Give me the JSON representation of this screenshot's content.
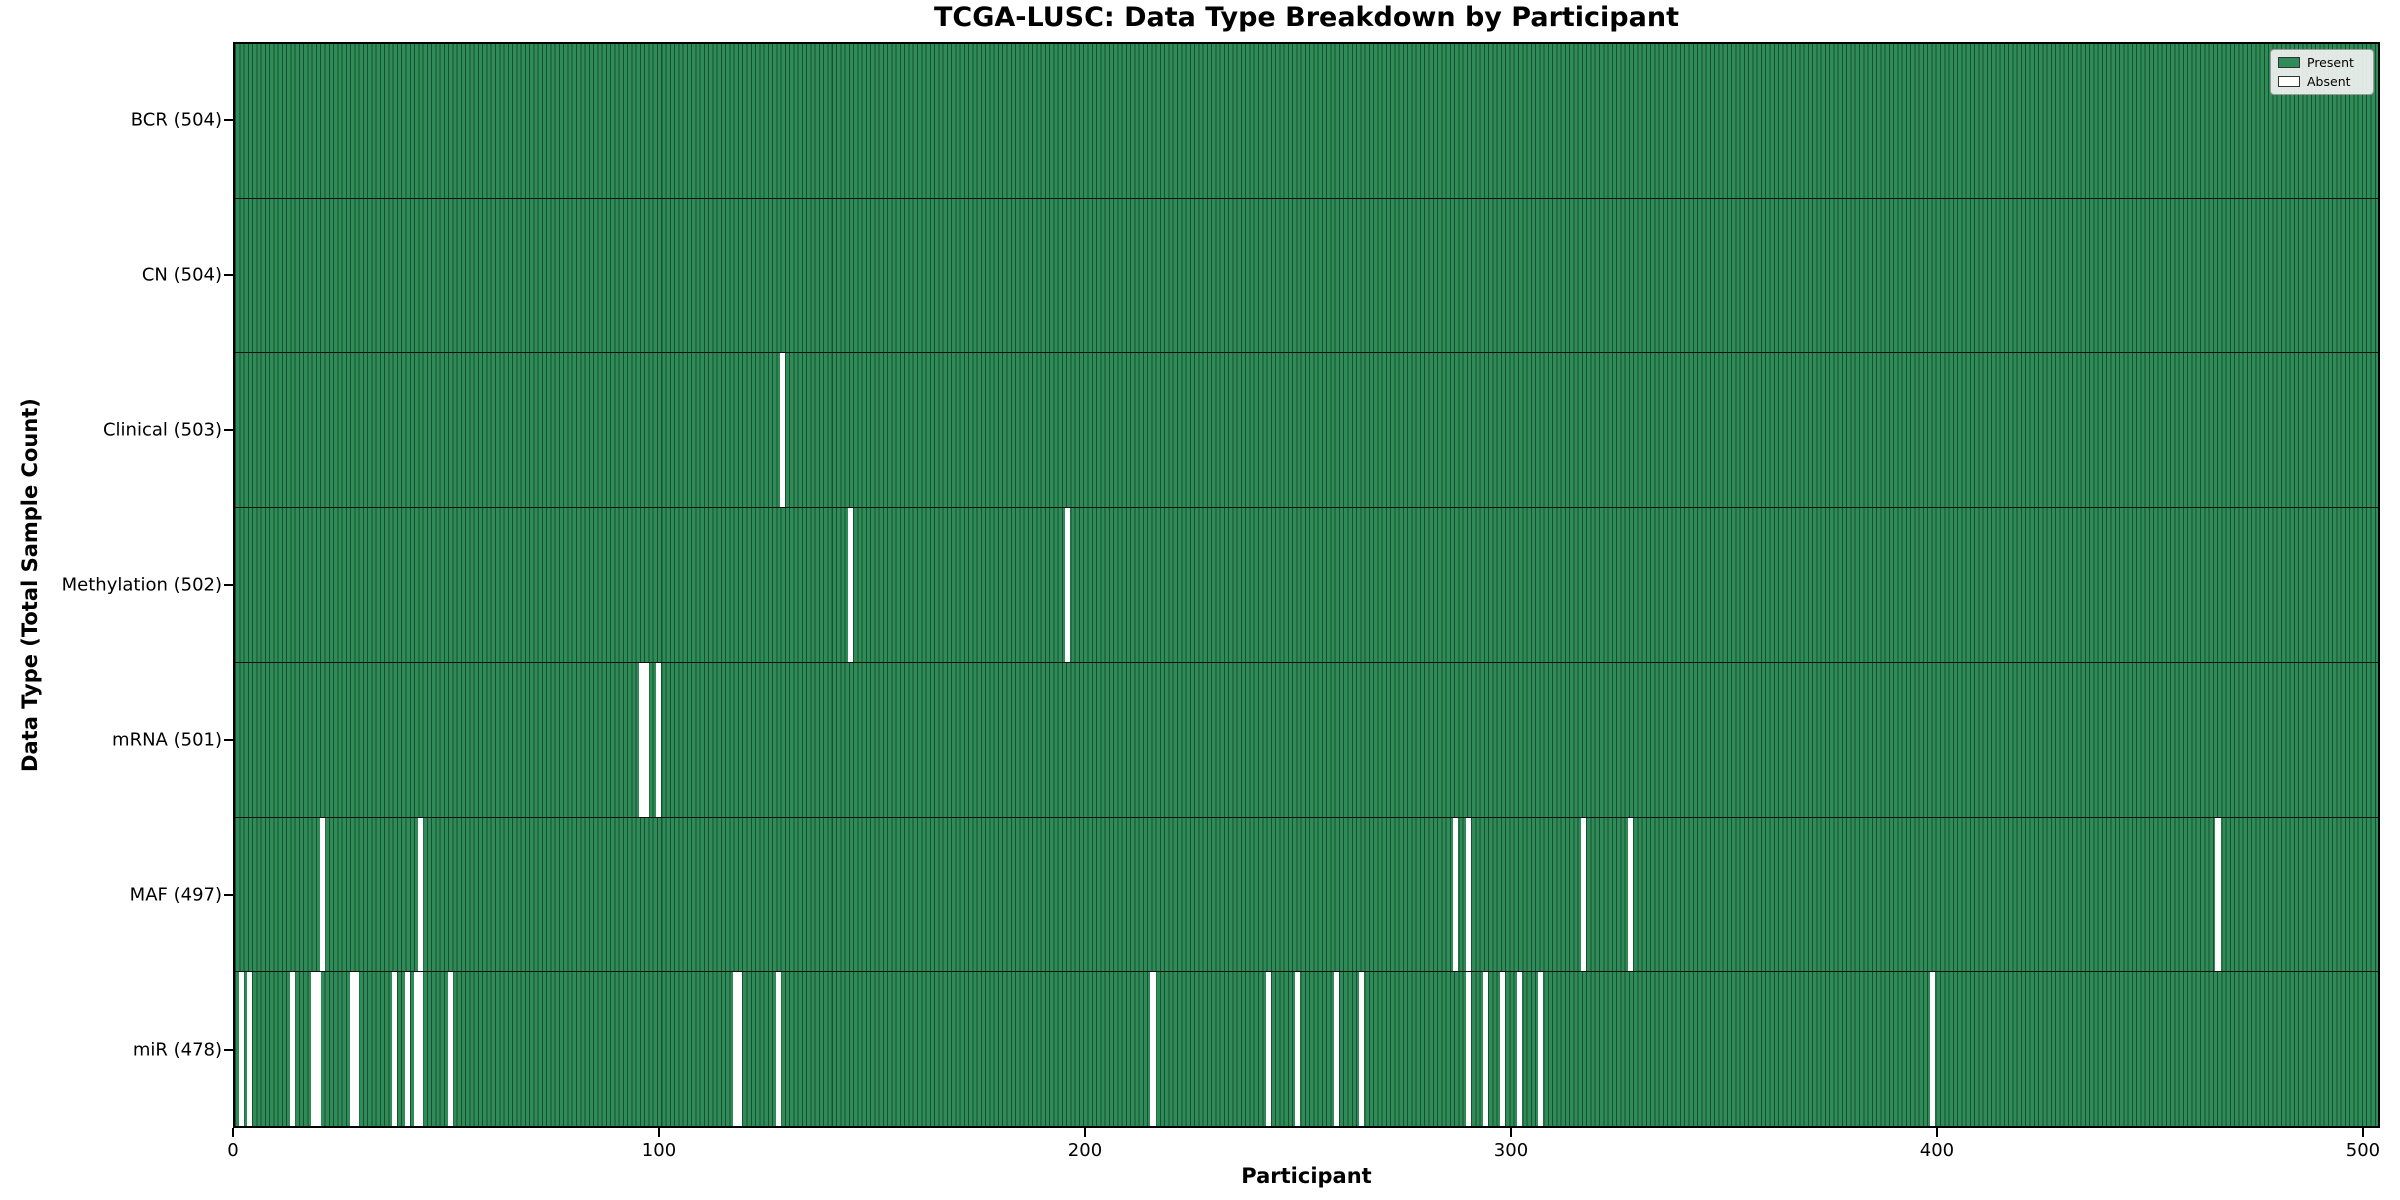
{
  "title": "TCGA-LUSC: Data Type Breakdown by Participant",
  "xlabel": "Participant",
  "ylabel": "Data Type (Total Sample Count)",
  "legend": {
    "present_label": "Present",
    "absent_label": "Absent"
  },
  "colors": {
    "present": "#2f8b58",
    "edge": "#17502e",
    "absent": "#ffffff"
  },
  "chart_data": {
    "type": "heatmap",
    "title": "TCGA-LUSC: Data Type Breakdown by Participant",
    "xlabel": "Participant",
    "ylabel": "Data Type (Total Sample Count)",
    "legend_entries": [
      "Present",
      "Absent"
    ],
    "legend_position": "upper right",
    "n_participants": 504,
    "x_ticks": [
      0,
      100,
      200,
      300,
      400,
      500
    ],
    "x_range": [
      0,
      504
    ],
    "rows": [
      {
        "label": "BCR (504)",
        "data_type": "BCR",
        "present_count": 504,
        "absent_participants": []
      },
      {
        "label": "CN (504)",
        "data_type": "CN",
        "present_count": 504,
        "absent_participants": []
      },
      {
        "label": "Clinical (503)",
        "data_type": "Clinical",
        "present_count": 503,
        "absent_participants": [
          128
        ]
      },
      {
        "label": "Methylation (502)",
        "data_type": "Methylation",
        "present_count": 502,
        "absent_participants": [
          144,
          195
        ]
      },
      {
        "label": "mRNA (501)",
        "data_type": "mRNA",
        "present_count": 501,
        "absent_participants": [
          95,
          96,
          99
        ]
      },
      {
        "label": "MAF (497)",
        "data_type": "MAF",
        "present_count": 497,
        "absent_participants": [
          20,
          43,
          286,
          289,
          316,
          327,
          465
        ]
      },
      {
        "label": "miR (478)",
        "data_type": "miR",
        "present_count": 478,
        "absent_participants": [
          1,
          3,
          13,
          18,
          19,
          27,
          28,
          37,
          40,
          42,
          43,
          50,
          117,
          118,
          127,
          215,
          242,
          249,
          258,
          264,
          289,
          293,
          297,
          301,
          306,
          398
        ]
      }
    ]
  }
}
